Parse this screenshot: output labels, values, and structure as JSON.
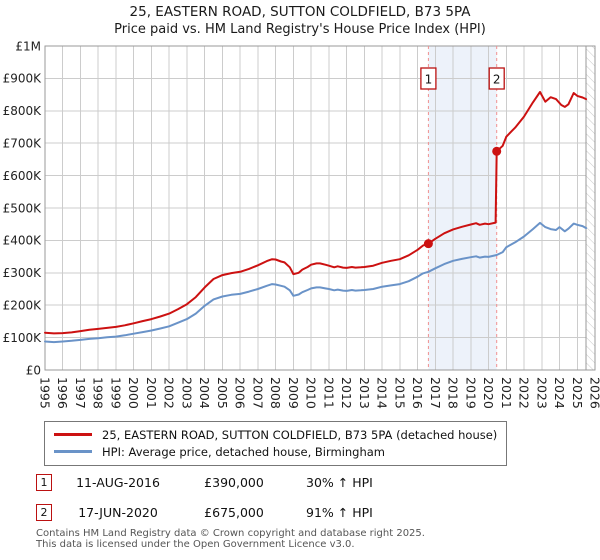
{
  "title": {
    "line1": "25, EASTERN ROAD, SUTTON COLDFIELD, B73 5PA",
    "line2": "Price paid vs. HM Land Registry's House Price Index (HPI)"
  },
  "chart_data": {
    "type": "line",
    "x_range": [
      1995,
      2026
    ],
    "y_range": [
      0,
      1000
    ],
    "y_value_unit": "GBP thousands",
    "grid": true,
    "x_ticks": [
      1995,
      1996,
      1997,
      1998,
      1999,
      2000,
      2001,
      2002,
      2003,
      2004,
      2005,
      2006,
      2007,
      2008,
      2009,
      2010,
      2011,
      2012,
      2013,
      2014,
      2015,
      2016,
      2017,
      2018,
      2019,
      2020,
      2021,
      2022,
      2023,
      2024,
      2025,
      2026
    ],
    "y_ticks": [
      {
        "value": 0,
        "label": "£0"
      },
      {
        "value": 100,
        "label": "£100K"
      },
      {
        "value": 200,
        "label": "£200K"
      },
      {
        "value": 300,
        "label": "£300K"
      },
      {
        "value": 400,
        "label": "£400K"
      },
      {
        "value": 500,
        "label": "£500K"
      },
      {
        "value": 600,
        "label": "£600K"
      },
      {
        "value": 700,
        "label": "£700K"
      },
      {
        "value": 800,
        "label": "£800K"
      },
      {
        "value": 900,
        "label": "£900K"
      },
      {
        "value": 1000,
        "label": "£1M"
      }
    ],
    "colors": {
      "grid": "#cccccc",
      "border": "#9a9a9a",
      "band": "#edf2fa",
      "sale_line": "#f09090",
      "accent_red": "#bb1111",
      "hatch": "#c9c9c9",
      "axis_text": "#222222"
    },
    "shaded_span": [
      2016.61,
      2020.46
    ],
    "hatch_from": 2025.5,
    "series": [
      {
        "id": "price-paid",
        "name": "25, EASTERN ROAD, SUTTON COLDFIELD, B73 5PA (detached house)",
        "color": "#cc1111",
        "points": [
          [
            1995,
            115
          ],
          [
            1995.5,
            113
          ],
          [
            1996,
            114
          ],
          [
            1996.5,
            116
          ],
          [
            1997,
            120
          ],
          [
            1997.5,
            124
          ],
          [
            1998,
            127
          ],
          [
            1998.5,
            130
          ],
          [
            1999,
            133
          ],
          [
            1999.5,
            138
          ],
          [
            2000,
            144
          ],
          [
            2000.5,
            151
          ],
          [
            2001,
            157
          ],
          [
            2001.5,
            165
          ],
          [
            2002,
            174
          ],
          [
            2002.5,
            188
          ],
          [
            2003,
            203
          ],
          [
            2003.5,
            225
          ],
          [
            2004,
            255
          ],
          [
            2004.5,
            281
          ],
          [
            2005,
            293
          ],
          [
            2005.5,
            299
          ],
          [
            2006,
            303
          ],
          [
            2006.5,
            312
          ],
          [
            2007,
            323
          ],
          [
            2007.5,
            336
          ],
          [
            2007.8,
            342
          ],
          [
            2008,
            341
          ],
          [
            2008.3,
            335
          ],
          [
            2008.5,
            332
          ],
          [
            2008.8,
            317
          ],
          [
            2009,
            296
          ],
          [
            2009.3,
            300
          ],
          [
            2009.5,
            310
          ],
          [
            2009.8,
            318
          ],
          [
            2010,
            325
          ],
          [
            2010.3,
            329
          ],
          [
            2010.5,
            329
          ],
          [
            2010.8,
            325
          ],
          [
            2011,
            322
          ],
          [
            2011.3,
            317
          ],
          [
            2011.5,
            320
          ],
          [
            2011.8,
            316
          ],
          [
            2012,
            315
          ],
          [
            2012.3,
            318
          ],
          [
            2012.5,
            316
          ],
          [
            2012.8,
            317
          ],
          [
            2013,
            318
          ],
          [
            2013.5,
            322
          ],
          [
            2014,
            331
          ],
          [
            2014.5,
            337
          ],
          [
            2015,
            342
          ],
          [
            2015.5,
            354
          ],
          [
            2016,
            371
          ],
          [
            2016.3,
            384
          ],
          [
            2016.61,
            390
          ],
          [
            2017,
            405
          ],
          [
            2017.5,
            422
          ],
          [
            2018,
            434
          ],
          [
            2018.5,
            442
          ],
          [
            2019,
            449
          ],
          [
            2019.3,
            453
          ],
          [
            2019.5,
            448
          ],
          [
            2019.8,
            452
          ],
          [
            2020,
            450
          ],
          [
            2020.4,
            455
          ],
          [
            2020.46,
            675
          ],
          [
            2020.8,
            692
          ],
          [
            2021,
            720
          ],
          [
            2021.3,
            737
          ],
          [
            2021.5,
            748
          ],
          [
            2022,
            782
          ],
          [
            2022.5,
            826
          ],
          [
            2022.9,
            858
          ],
          [
            2023.2,
            828
          ],
          [
            2023.5,
            842
          ],
          [
            2023.8,
            836
          ],
          [
            2024.1,
            818
          ],
          [
            2024.3,
            812
          ],
          [
            2024.5,
            820
          ],
          [
            2024.8,
            855
          ],
          [
            2025,
            846
          ],
          [
            2025.3,
            841
          ],
          [
            2025.5,
            836
          ]
        ]
      },
      {
        "id": "hpi",
        "name": "HPI: Average price, detached house, Birmingham",
        "color": "#6a93c8",
        "points": [
          [
            1995,
            88
          ],
          [
            1995.5,
            86
          ],
          [
            1996,
            88
          ],
          [
            1996.5,
            90
          ],
          [
            1997,
            93
          ],
          [
            1997.5,
            96
          ],
          [
            1998,
            98
          ],
          [
            1998.5,
            101
          ],
          [
            1999,
            103
          ],
          [
            1999.5,
            107
          ],
          [
            2000,
            112
          ],
          [
            2000.5,
            117
          ],
          [
            2001,
            122
          ],
          [
            2001.5,
            128
          ],
          [
            2002,
            135
          ],
          [
            2002.5,
            146
          ],
          [
            2003,
            157
          ],
          [
            2003.5,
            174
          ],
          [
            2004,
            198
          ],
          [
            2004.5,
            218
          ],
          [
            2005,
            227
          ],
          [
            2005.5,
            232
          ],
          [
            2006,
            235
          ],
          [
            2006.5,
            242
          ],
          [
            2007,
            250
          ],
          [
            2007.5,
            260
          ],
          [
            2007.8,
            265
          ],
          [
            2008,
            264
          ],
          [
            2008.3,
            260
          ],
          [
            2008.5,
            257
          ],
          [
            2008.8,
            246
          ],
          [
            2009,
            229
          ],
          [
            2009.3,
            233
          ],
          [
            2009.5,
            240
          ],
          [
            2009.8,
            247
          ],
          [
            2010,
            252
          ],
          [
            2010.3,
            255
          ],
          [
            2010.5,
            255
          ],
          [
            2010.8,
            252
          ],
          [
            2011,
            250
          ],
          [
            2011.3,
            246
          ],
          [
            2011.5,
            248
          ],
          [
            2011.8,
            245
          ],
          [
            2012,
            244
          ],
          [
            2012.3,
            247
          ],
          [
            2012.5,
            245
          ],
          [
            2012.8,
            246
          ],
          [
            2013,
            247
          ],
          [
            2013.5,
            250
          ],
          [
            2014,
            257
          ],
          [
            2014.5,
            261
          ],
          [
            2015,
            265
          ],
          [
            2015.5,
            274
          ],
          [
            2016,
            288
          ],
          [
            2016.3,
            298
          ],
          [
            2016.61,
            303
          ],
          [
            2017,
            314
          ],
          [
            2017.5,
            327
          ],
          [
            2018,
            337
          ],
          [
            2018.5,
            343
          ],
          [
            2019,
            348
          ],
          [
            2019.3,
            351
          ],
          [
            2019.5,
            347
          ],
          [
            2019.8,
            350
          ],
          [
            2020,
            349
          ],
          [
            2020.46,
            355
          ],
          [
            2020.8,
            364
          ],
          [
            2021,
            379
          ],
          [
            2021.3,
            388
          ],
          [
            2021.5,
            394
          ],
          [
            2022,
            412
          ],
          [
            2022.5,
            435
          ],
          [
            2022.9,
            454
          ],
          [
            2023.2,
            441
          ],
          [
            2023.5,
            435
          ],
          [
            2023.8,
            432
          ],
          [
            2024,
            441
          ],
          [
            2024.3,
            428
          ],
          [
            2024.5,
            436
          ],
          [
            2024.8,
            452
          ],
          [
            2025,
            448
          ],
          [
            2025.3,
            444
          ],
          [
            2025.5,
            438
          ]
        ]
      }
    ],
    "sale_events": [
      {
        "label": "1",
        "x_year": 2016.61,
        "price_k": 390,
        "date": "11-AUG-2016",
        "price_display": "£390,000",
        "pct_display": "30% ↑ HPI"
      },
      {
        "label": "2",
        "x_year": 2020.46,
        "price_k": 675,
        "date": "17-JUN-2020",
        "price_display": "£675,000",
        "pct_display": "91% ↑ HPI"
      }
    ]
  },
  "footer": {
    "line1": "Contains HM Land Registry data © Crown copyright and database right 2025.",
    "line2": "This data is licensed under the Open Government Licence v3.0."
  }
}
